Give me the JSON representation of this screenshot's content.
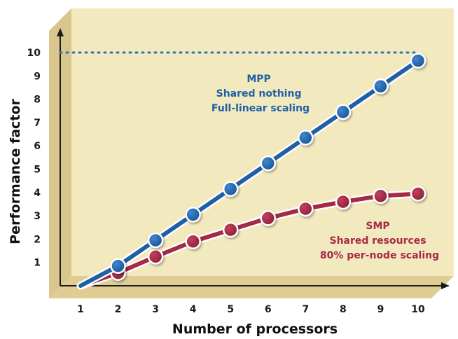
{
  "chart_data": {
    "type": "line",
    "title": "",
    "xlabel": "Number of processors",
    "ylabel": "Performance factor",
    "x": [
      1,
      2,
      3,
      4,
      5,
      6,
      7,
      8,
      9,
      10
    ],
    "x_ticks": [
      "1",
      "2",
      "3",
      "4",
      "5",
      "6",
      "7",
      "8",
      "9",
      "10"
    ],
    "y_ticks": [
      "1",
      "2",
      "3",
      "4",
      "5",
      "6",
      "7",
      "8",
      "9",
      "10"
    ],
    "xlim": [
      1,
      10
    ],
    "ylim": [
      0,
      10
    ],
    "grid": false,
    "reference_line": {
      "y": 10,
      "style": "dotted",
      "color": "#2e72b5"
    },
    "series": [
      {
        "key": "mpp",
        "values": [
          0,
          0.85,
          1.95,
          3.05,
          4.15,
          5.25,
          6.35,
          7.45,
          8.55,
          9.65
        ],
        "color": "#1f5fa6",
        "annotation": [
          "MPP",
          "Shared nothing",
          "Full-linear scaling"
        ]
      },
      {
        "key": "smp",
        "values": [
          0,
          0.55,
          1.25,
          1.9,
          2.4,
          2.9,
          3.3,
          3.6,
          3.85,
          3.95
        ],
        "color": "#a52a45",
        "annotation": [
          "SMP",
          "Shared resources",
          "80% per-node scaling"
        ]
      }
    ]
  }
}
